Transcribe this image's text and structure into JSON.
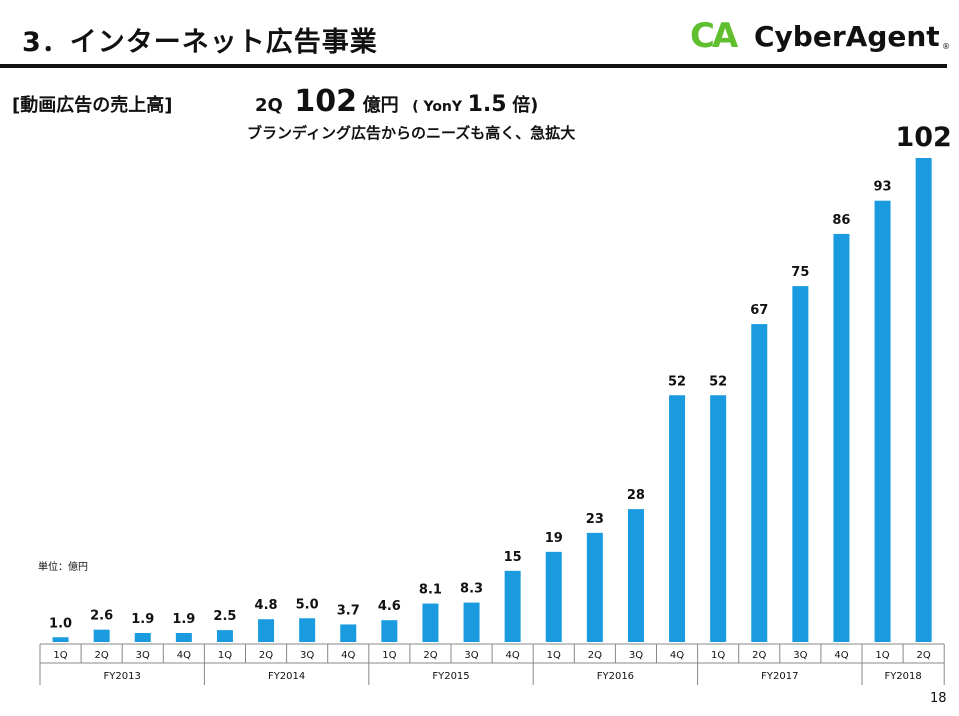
{
  "header": {
    "title": "3．インターネット広告事業",
    "logo_mark": "CA",
    "logo_text": "CyberAgent",
    "logo_reg": "®"
  },
  "section_label": "[動画広告の売上高]",
  "headline": {
    "quarter": "2Q",
    "value": "102",
    "unit": "億円",
    "yony_prefix": "( YonY",
    "yony_value": "1.5",
    "yony_suffix": "倍)"
  },
  "subline": "ブランディング広告からのニーズも高く、急拡大",
  "unit_label": "単位：億円",
  "page_number": "18",
  "colors": {
    "bar": "#1a9be0",
    "accent_green": "#5fbf2e",
    "axis": "#888888"
  },
  "chart_data": {
    "type": "bar",
    "categories": [
      "1Q",
      "2Q",
      "3Q",
      "4Q",
      "1Q",
      "2Q",
      "3Q",
      "4Q",
      "1Q",
      "2Q",
      "3Q",
      "4Q",
      "1Q",
      "2Q",
      "3Q",
      "4Q",
      "1Q",
      "2Q",
      "3Q",
      "4Q",
      "1Q",
      "2Q"
    ],
    "groups": [
      {
        "label": "FY2013",
        "count": 4
      },
      {
        "label": "FY2014",
        "count": 4
      },
      {
        "label": "FY2015",
        "count": 4
      },
      {
        "label": "FY2016",
        "count": 4
      },
      {
        "label": "FY2017",
        "count": 4
      },
      {
        "label": "FY2018",
        "count": 2
      }
    ],
    "values": [
      1.0,
      2.6,
      1.9,
      1.9,
      2.5,
      4.8,
      5.0,
      3.7,
      4.6,
      8.1,
      8.3,
      15,
      19,
      23,
      28,
      52,
      52,
      67,
      75,
      86,
      93,
      102
    ],
    "labels": [
      "1.0",
      "2.6",
      "1.9",
      "1.9",
      "2.5",
      "4.8",
      "5.0",
      "3.7",
      "4.6",
      "8.1",
      "8.3",
      "15",
      "19",
      "23",
      "28",
      "52",
      "52",
      "67",
      "75",
      "86",
      "93",
      "102"
    ],
    "ylim": [
      0,
      102
    ],
    "grid": false,
    "legend": "none"
  }
}
